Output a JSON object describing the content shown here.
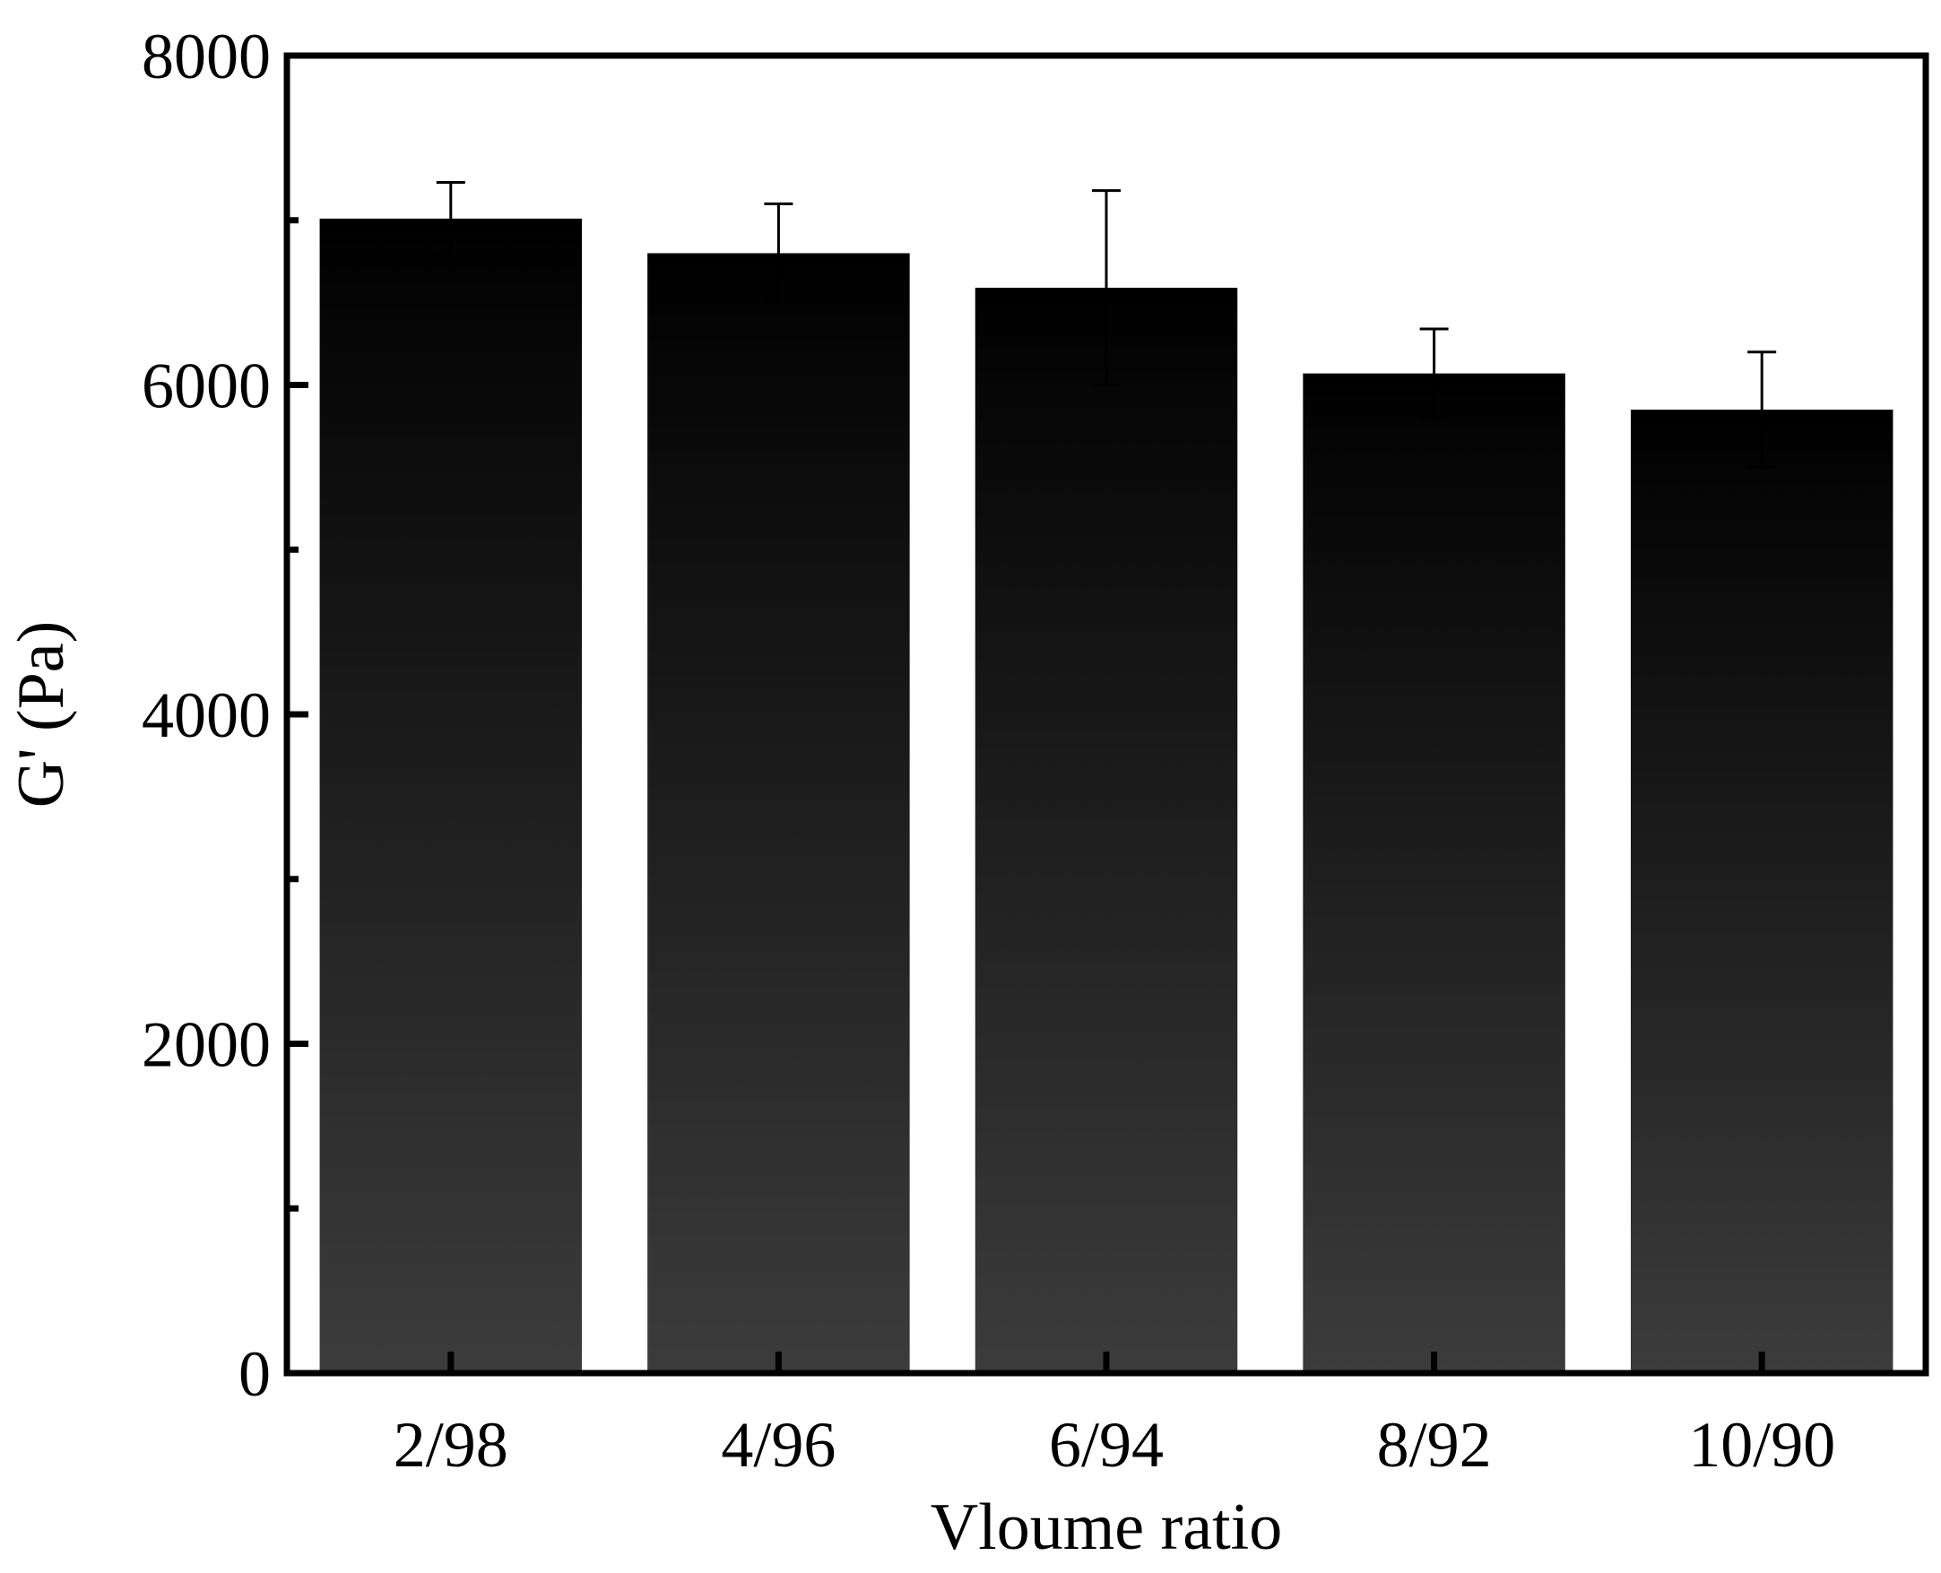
{
  "chart_data": {
    "type": "bar",
    "xlabel": "Vloume ratio",
    "ylabel": "G' (Pa)",
    "ylim": [
      0,
      8000
    ],
    "yticks": [
      0,
      2000,
      4000,
      6000,
      8000
    ],
    "yticks_minor": [
      1000,
      3000,
      5000,
      7000
    ],
    "categories": [
      "2/98",
      "4/96",
      "6/94",
      "8/92",
      "10/90"
    ],
    "values": [
      7010,
      6800,
      6590,
      6070,
      5850
    ],
    "errors": [
      220,
      300,
      590,
      270,
      350
    ],
    "grid": false,
    "legend": "none",
    "bar_color_top": "#000000",
    "bar_color_bottom": "#3c3c3c",
    "axis_color": "#000000"
  }
}
